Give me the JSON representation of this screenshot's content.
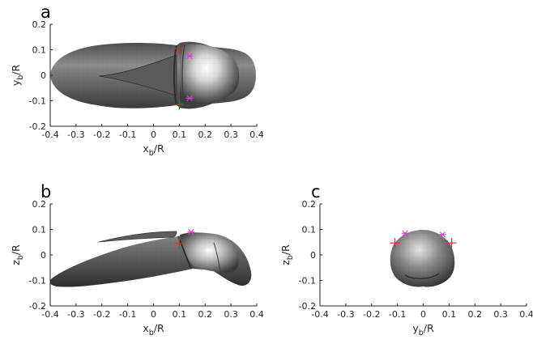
{
  "chart_data": [
    {
      "panel": "a",
      "type": "3d-surface-projection",
      "view": "top",
      "xlabel": {
        "base": "x",
        "sub": "b",
        "suffix": "/R"
      },
      "ylabel": {
        "base": "y",
        "sub": "b",
        "suffix": "/R"
      },
      "xlim": [
        -0.4,
        0.4
      ],
      "ylim": [
        -0.2,
        0.2
      ],
      "xticks": [
        "-0.4",
        "-0.3",
        "-0.2",
        "-0.1",
        "0",
        "0.1",
        "0.2",
        "0.3",
        "0.4"
      ],
      "yticks": [
        "-0.2",
        "-0.1",
        "0",
        "0.1",
        "0.2"
      ],
      "markers": [
        {
          "kind": "plus",
          "color": "#e8203a",
          "x": 0.1,
          "y": 0.105
        },
        {
          "kind": "plus",
          "color": "#e8203a",
          "x": 0.1,
          "y": -0.115
        },
        {
          "kind": "asterisk",
          "color": "#d63fd6",
          "x": 0.14,
          "y": 0.075
        },
        {
          "kind": "asterisk",
          "color": "#d63fd6",
          "x": 0.14,
          "y": -0.09
        }
      ]
    },
    {
      "panel": "b",
      "type": "3d-surface-projection",
      "view": "side",
      "xlabel": {
        "base": "x",
        "sub": "b",
        "suffix": "/R"
      },
      "ylabel": {
        "base": "z",
        "sub": "b",
        "suffix": "/R"
      },
      "xlim": [
        -0.4,
        0.4
      ],
      "ylim": [
        -0.2,
        0.2
      ],
      "xticks": [
        "-0.4",
        "-0.3",
        "-0.2",
        "-0.1",
        "0",
        "0.1",
        "0.2",
        "0.3",
        "0.4"
      ],
      "yticks": [
        "-0.2",
        "-0.1",
        "0",
        "0.1",
        "0.2"
      ],
      "markers": [
        {
          "kind": "plus",
          "color": "#e8203a",
          "x": 0.1,
          "y": 0.045
        },
        {
          "kind": "asterisk",
          "color": "#d63fd6",
          "x": 0.145,
          "y": 0.09
        }
      ]
    },
    {
      "panel": "c",
      "type": "3d-surface-projection",
      "view": "front",
      "xlabel": {
        "base": "y",
        "sub": "b",
        "suffix": "/R"
      },
      "ylabel": {
        "base": "z",
        "sub": "b",
        "suffix": "/R"
      },
      "xlim": [
        -0.4,
        0.4
      ],
      "ylim": [
        -0.2,
        0.2
      ],
      "xticks": [
        "-0.4",
        "-0.3",
        "-0.2",
        "-0.1",
        "0",
        "0.1",
        "0.2",
        "0.3",
        "0.4"
      ],
      "yticks": [
        "-0.2",
        "-0.1",
        "0",
        "0.1",
        "0.2"
      ],
      "markers": [
        {
          "kind": "plus",
          "color": "#e8203a",
          "x": -0.11,
          "y": 0.047
        },
        {
          "kind": "plus",
          "color": "#e8203a",
          "x": 0.11,
          "y": 0.047
        },
        {
          "kind": "asterisk",
          "color": "#d63fd6",
          "x": -0.07,
          "y": 0.085
        },
        {
          "kind": "asterisk",
          "color": "#d63fd6",
          "x": 0.075,
          "y": 0.08
        }
      ]
    }
  ],
  "colors": {
    "surface_dark": "#3a3a3a",
    "surface_mid": "#7a7a7a",
    "surface_light": "#f2f2f2",
    "axis": "#262626"
  }
}
